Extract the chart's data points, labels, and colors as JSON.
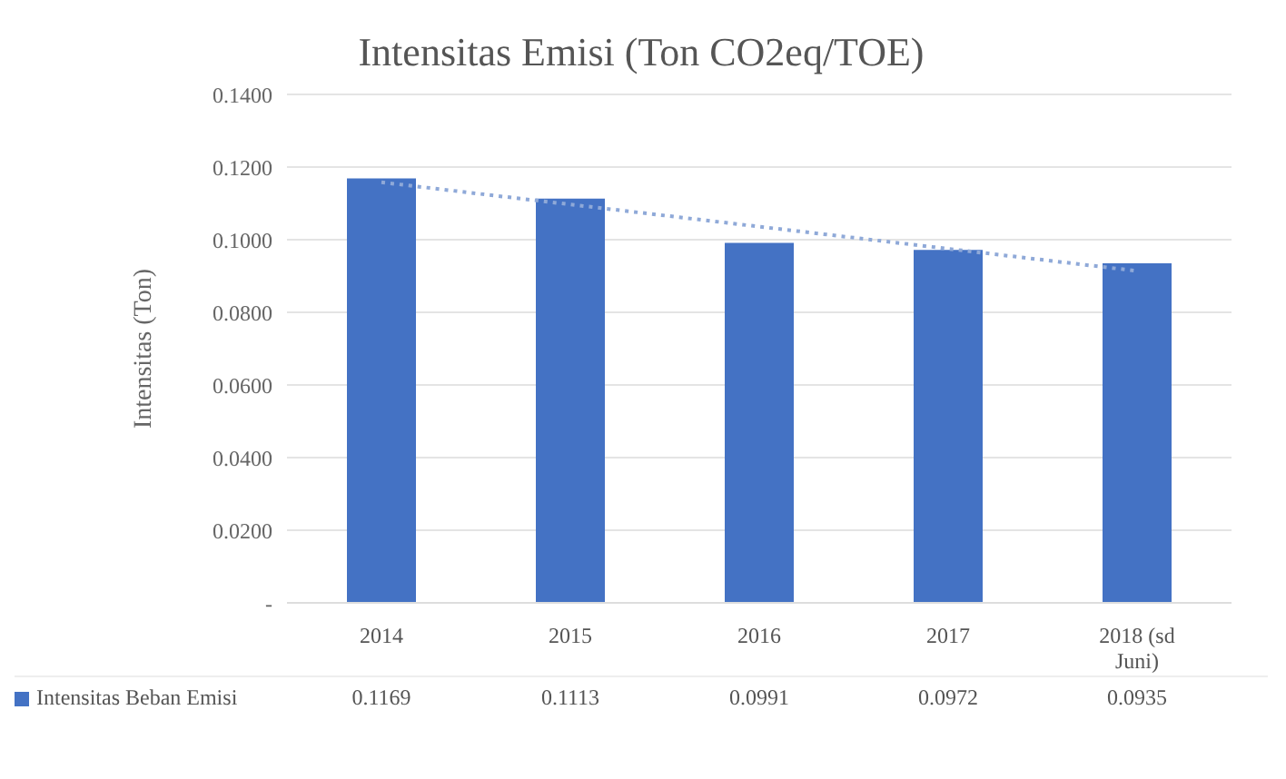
{
  "chart_data": {
    "type": "bar",
    "title": "Intensitas Emisi (Ton CO2eq/TOE)",
    "ylabel": "Intensitas (Ton)",
    "categories": [
      "2014",
      "2015",
      "2016",
      "2017",
      "2018 (sd Juni)"
    ],
    "series": [
      {
        "name": "Intensitas Beban Emisi",
        "color": "#4472c4",
        "values": [
          0.1169,
          0.1113,
          0.0991,
          0.0972,
          0.0935
        ],
        "value_labels": [
          "0.1169",
          "0.1113",
          "0.0991",
          "0.0972",
          "0.0935"
        ]
      },
      {
        "type": "line",
        "color": "#8fa9d8",
        "line_style": "dotted",
        "values": [
          0.1158,
          0.1097,
          0.1036,
          0.0975,
          0.0914
        ]
      }
    ],
    "ylim": [
      0,
      0.14
    ],
    "yticks": [
      {
        "value": 0,
        "label": "-"
      },
      {
        "value": 0.02,
        "label": "0.0200"
      },
      {
        "value": 0.04,
        "label": "0.0400"
      },
      {
        "value": 0.06,
        "label": "0.0600"
      },
      {
        "value": 0.08,
        "label": "0.0800"
      },
      {
        "value": 0.1,
        "label": "0.1000"
      },
      {
        "value": 0.12,
        "label": "0.1200"
      },
      {
        "value": 0.14,
        "label": "0.1400"
      }
    ],
    "grid": "y",
    "legend": "bottom"
  }
}
